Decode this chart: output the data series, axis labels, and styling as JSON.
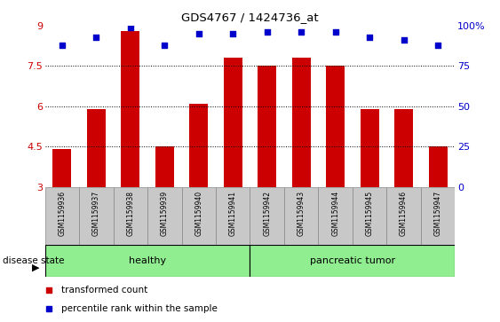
{
  "title": "GDS4767 / 1424736_at",
  "samples": [
    "GSM1159936",
    "GSM1159937",
    "GSM1159938",
    "GSM1159939",
    "GSM1159940",
    "GSM1159941",
    "GSM1159942",
    "GSM1159943",
    "GSM1159944",
    "GSM1159945",
    "GSM1159946",
    "GSM1159947"
  ],
  "bar_values": [
    4.4,
    5.9,
    8.8,
    4.5,
    6.1,
    7.8,
    7.5,
    7.8,
    7.5,
    5.9,
    5.9,
    4.5
  ],
  "percentile_values": [
    88,
    93,
    99,
    88,
    95,
    95,
    96,
    96,
    96,
    93,
    91,
    88
  ],
  "bar_color": "#CC0000",
  "dot_color": "#0000CC",
  "ylim_left": [
    3,
    9
  ],
  "ylim_right": [
    0,
    100
  ],
  "yticks_left": [
    3,
    4.5,
    6,
    7.5,
    9
  ],
  "ytick_labels_left": [
    "3",
    "4.5",
    "6",
    "7.5",
    "9"
  ],
  "yticks_right": [
    0,
    25,
    50,
    75,
    100
  ],
  "ytick_labels_right": [
    "0",
    "25",
    "50",
    "75",
    "100%"
  ],
  "groups": [
    {
      "label": "healthy",
      "start": 0,
      "end": 5,
      "color": "#90EE90"
    },
    {
      "label": "pancreatic tumor",
      "start": 6,
      "end": 11,
      "color": "#90EE90"
    }
  ],
  "disease_state_label": "disease state",
  "legend": [
    {
      "label": "transformed count",
      "color": "#CC0000"
    },
    {
      "label": "percentile rank within the sample",
      "color": "#0000CC"
    }
  ],
  "background_color": "#FFFFFF",
  "bar_width": 0.55,
  "label_box_color": "#C8C8C8",
  "label_box_edge": "#888888"
}
